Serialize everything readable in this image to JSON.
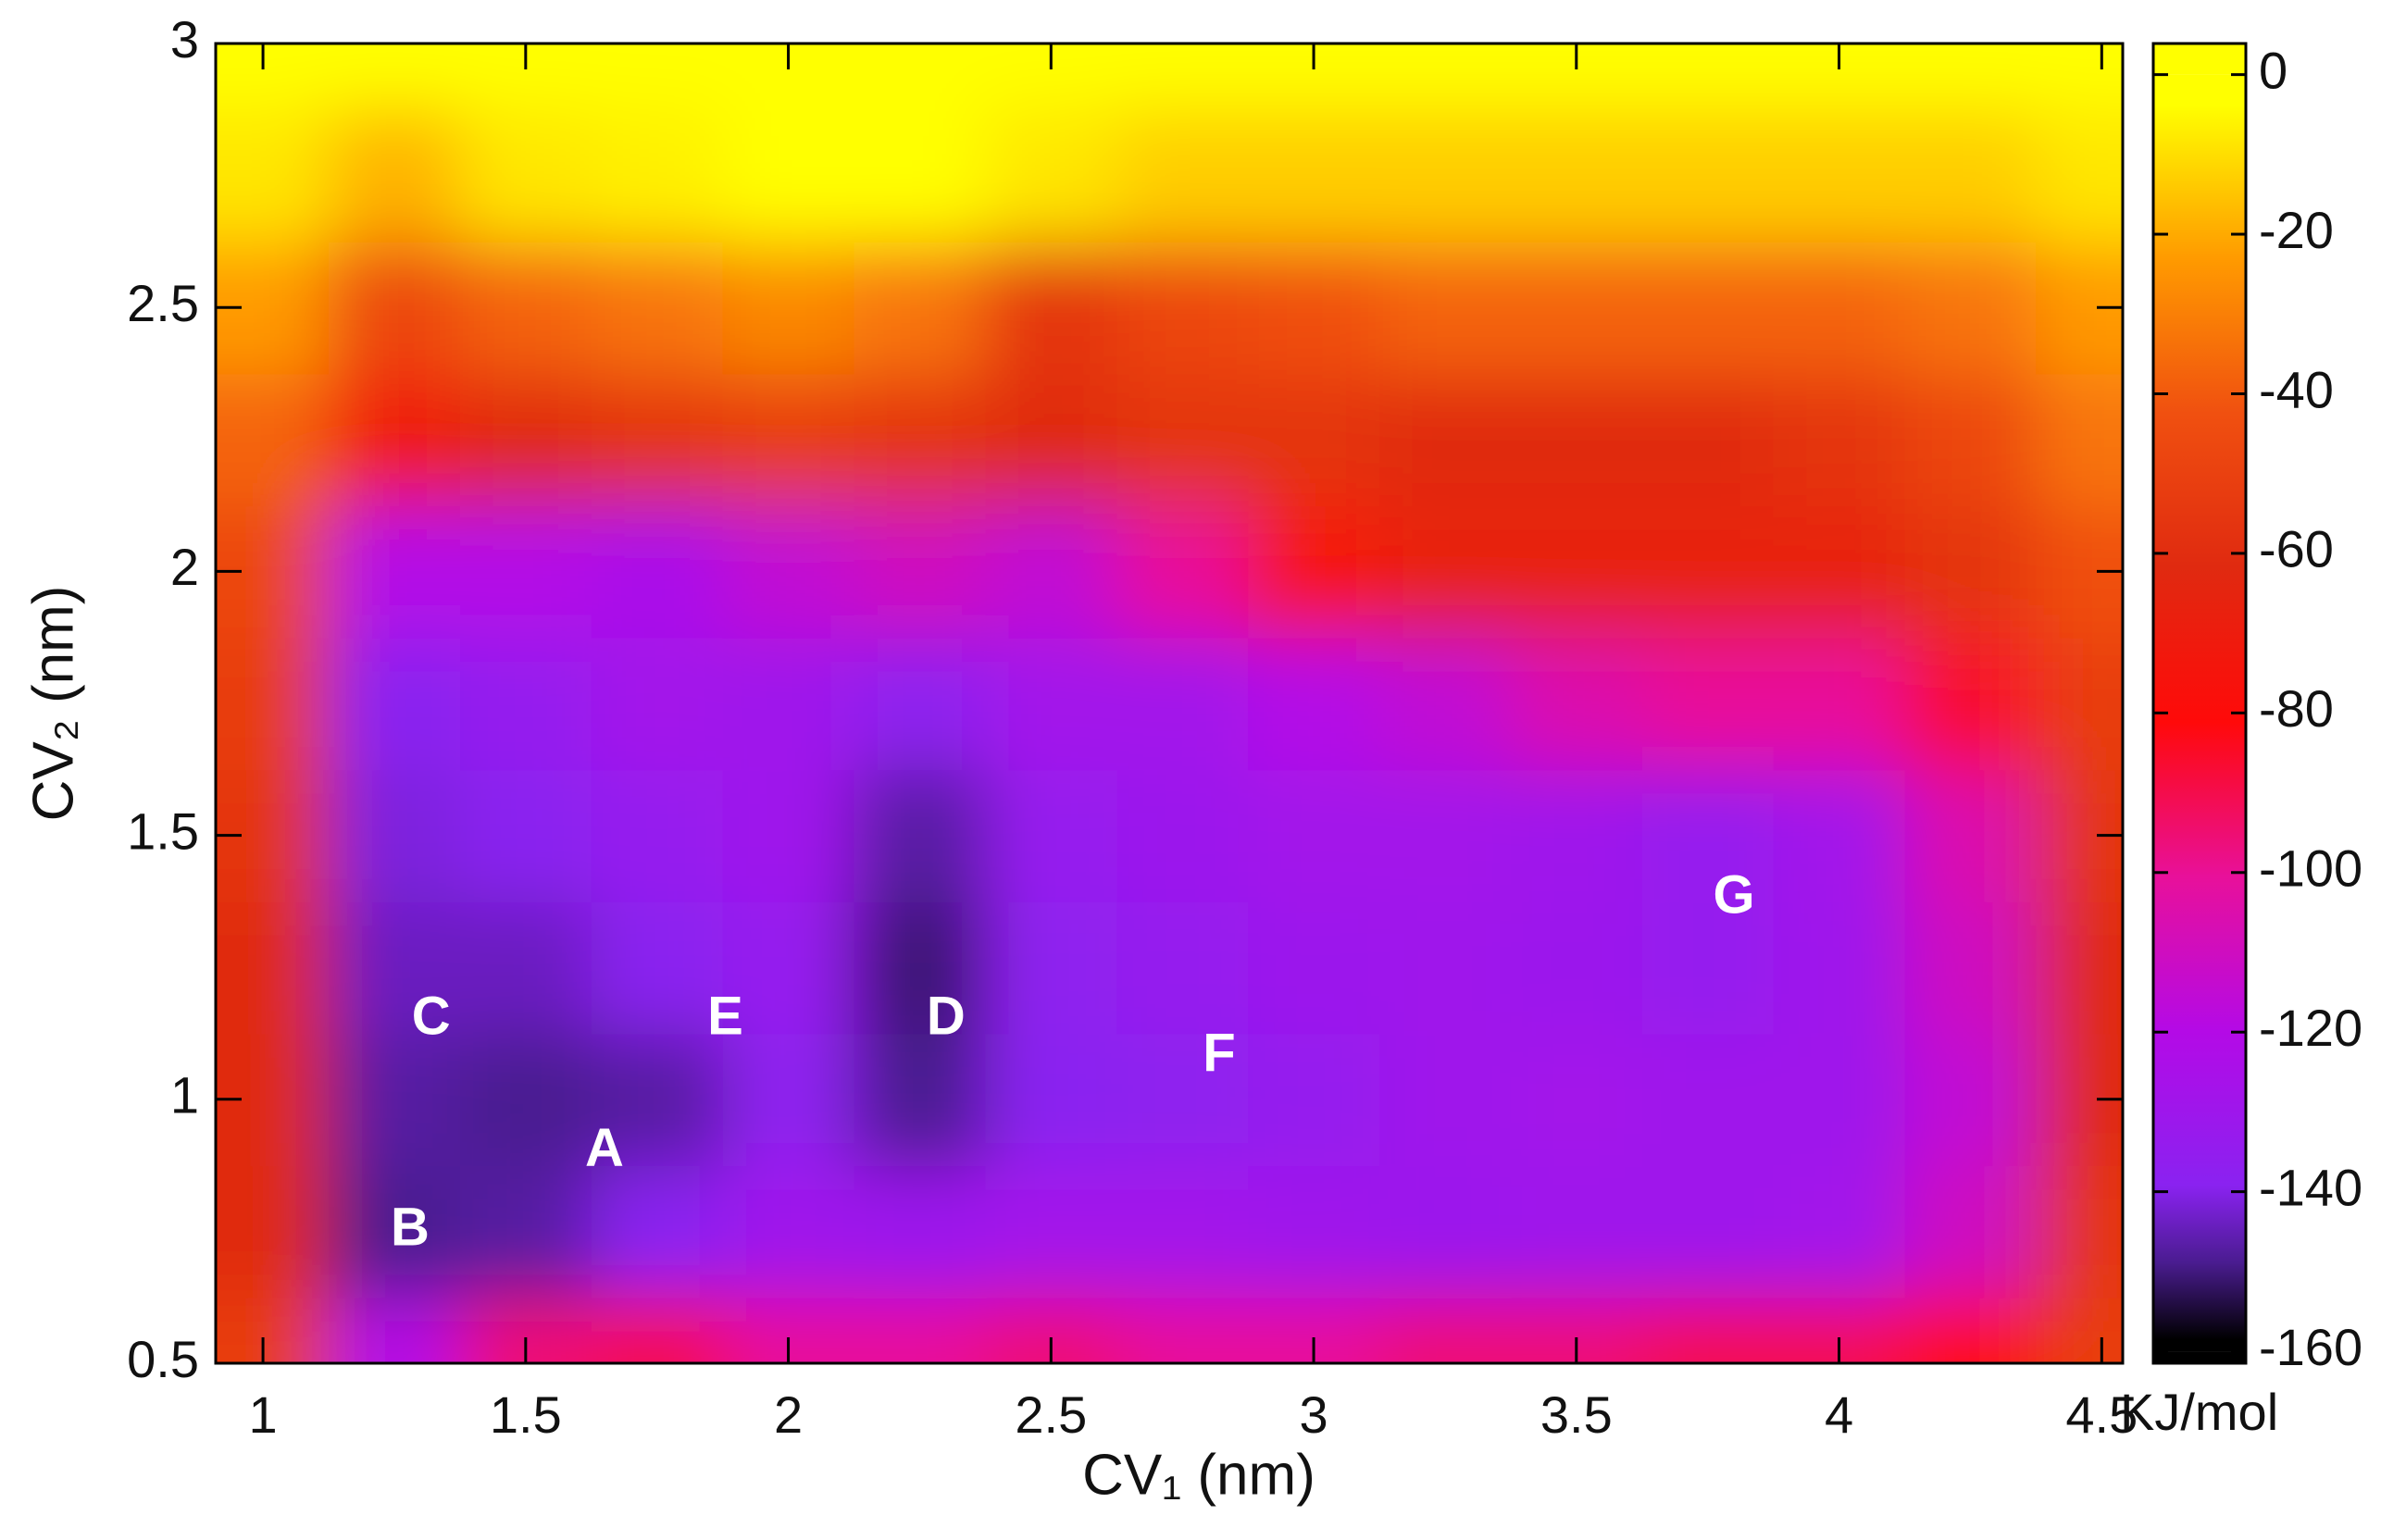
{
  "chart_data": {
    "type": "heatmap",
    "xlabel": "CV₁ (nm)",
    "ylabel": "CV₂ (nm)",
    "colorbar_label": "KJ/mol",
    "xlim": [
      0.91,
      4.54
    ],
    "ylim": [
      0.5,
      3
    ],
    "xticks": [
      1,
      1.5,
      2,
      2.5,
      3,
      3.5,
      4,
      4.5
    ],
    "yticks": [
      0.5,
      1,
      1.5,
      2,
      2.5,
      3
    ],
    "zlim": [
      -161.5,
      3.9
    ],
    "zticks": [
      0,
      -20,
      -40,
      -60,
      -80,
      -100,
      -120,
      -140,
      -160
    ],
    "colorscale": [
      {
        "value": 0,
        "color": "#ffff00"
      },
      {
        "value": -20,
        "color": "#ff9a00"
      },
      {
        "value": -40,
        "color": "#f05010"
      },
      {
        "value": -60,
        "color": "#e02a10"
      },
      {
        "value": -80,
        "color": "#ff0a0a"
      },
      {
        "value": -100,
        "color": "#e8109a"
      },
      {
        "value": -120,
        "color": "#b40ae6"
      },
      {
        "value": -140,
        "color": "#8a22f0"
      },
      {
        "value": -150,
        "color": "#4a1c90"
      },
      {
        "value": -160,
        "color": "#000000"
      }
    ],
    "x": [
      1,
      1.25,
      1.5,
      1.75,
      2,
      2.25,
      2.5,
      2.75,
      3,
      3.25,
      3.5,
      3.75,
      4,
      4.25,
      4.5
    ],
    "y": [
      0.5,
      0.75,
      1,
      1.25,
      1.5,
      1.75,
      2,
      2.25,
      2.5,
      2.75,
      3
    ],
    "z": [
      [
        -50,
        -120,
        -95,
        -90,
        -100,
        -100,
        -95,
        -100,
        -100,
        -95,
        -95,
        -90,
        -90,
        -80,
        -50
      ],
      [
        -60,
        -150,
        -148,
        -140,
        -130,
        -132,
        -128,
        -128,
        -130,
        -132,
        -130,
        -130,
        -128,
        -110,
        -55
      ],
      [
        -60,
        -148,
        -150,
        -148,
        -138,
        -150,
        -140,
        -138,
        -135,
        -130,
        -128,
        -130,
        -130,
        -115,
        -60
      ],
      [
        -60,
        -145,
        -145,
        -140,
        -135,
        -152,
        -138,
        -135,
        -132,
        -130,
        -132,
        -135,
        -130,
        -110,
        -60
      ],
      [
        -55,
        -142,
        -140,
        -135,
        -130,
        -148,
        -135,
        -132,
        -128,
        -128,
        -130,
        -135,
        -128,
        -105,
        -55
      ],
      [
        -50,
        -140,
        -135,
        -128,
        -130,
        -138,
        -128,
        -128,
        -120,
        -115,
        -105,
        -100,
        -100,
        -85,
        -50
      ],
      [
        -45,
        -120,
        -120,
        -125,
        -115,
        -110,
        -115,
        -100,
        -75,
        -65,
        -65,
        -65,
        -65,
        -55,
        -40
      ],
      [
        -35,
        -70,
        -60,
        -55,
        -50,
        -55,
        -60,
        -55,
        -55,
        -60,
        -60,
        -60,
        -55,
        -45,
        -30
      ],
      [
        -20,
        -45,
        -35,
        -30,
        -25,
        -30,
        -55,
        -45,
        -40,
        -35,
        -35,
        -35,
        -35,
        -30,
        -20
      ],
      [
        -5,
        -15,
        -5,
        -3,
        0,
        0,
        -5,
        -10,
        -10,
        -10,
        -10,
        -10,
        -10,
        -10,
        -5
      ],
      [
        0,
        0,
        0,
        0,
        0,
        0,
        0,
        0,
        0,
        0,
        0,
        0,
        0,
        0,
        0
      ]
    ],
    "annotations": [
      {
        "text": "A",
        "x": 1.65,
        "y": 0.9
      },
      {
        "text": "B",
        "x": 1.28,
        "y": 0.75
      },
      {
        "text": "C",
        "x": 1.32,
        "y": 1.15
      },
      {
        "text": "D",
        "x": 2.3,
        "y": 1.15
      },
      {
        "text": "E",
        "x": 1.88,
        "y": 1.15
      },
      {
        "text": "F",
        "x": 2.82,
        "y": 1.08
      },
      {
        "text": "G",
        "x": 3.8,
        "y": 1.38
      }
    ]
  }
}
